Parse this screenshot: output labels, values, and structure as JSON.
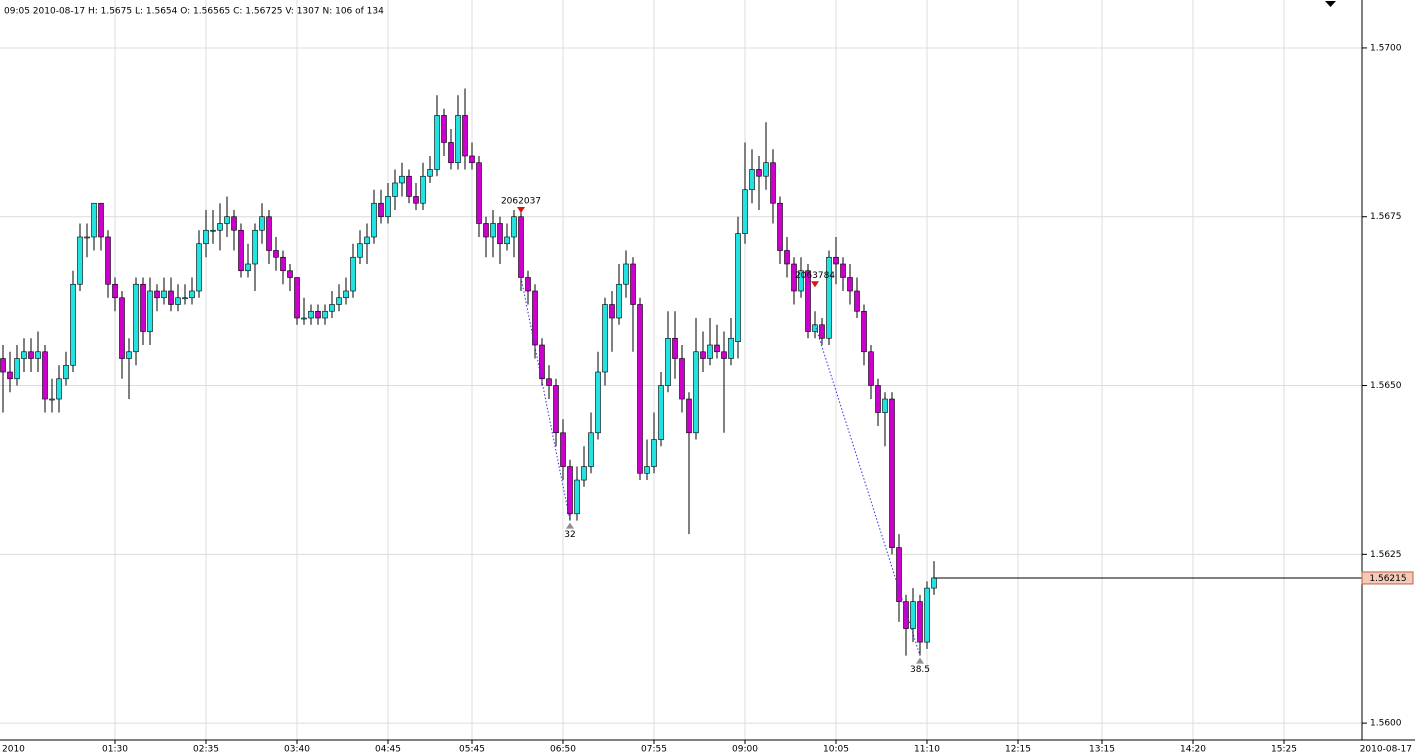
{
  "chart_data": {
    "type": "candlestick",
    "info": "09:05 2010-08-17 H: 1.5675 L: 1.5654 O: 1.56565 C: 1.56725 V: 1307 N: 106 of 134",
    "up_color": "#22e2e2",
    "down_color": "#cc00cc",
    "grid": true,
    "ylim": [
      1.55975,
      1.57071
    ],
    "yticks": [
      {
        "value": 1.56,
        "label": "1.5600"
      },
      {
        "value": 1.5625,
        "label": "1.5625"
      },
      {
        "value": 1.565,
        "label": "1.5650"
      },
      {
        "value": 1.5675,
        "label": "1.5675"
      },
      {
        "value": 1.57,
        "label": "1.5700"
      }
    ],
    "x_start_label": "2010",
    "x_end_label": "2010-08-17",
    "xticks": [
      {
        "value": 16,
        "label": "01:30"
      },
      {
        "value": 29,
        "label": "02:35"
      },
      {
        "value": 42,
        "label": "03:40"
      },
      {
        "value": 55,
        "label": "04:45"
      },
      {
        "value": 67,
        "label": "05:45"
      },
      {
        "value": 80,
        "label": "06:50"
      },
      {
        "value": 93,
        "label": "07:55"
      },
      {
        "value": 106,
        "label": "09:00"
      },
      {
        "value": 119,
        "label": "10:05"
      },
      {
        "value": 132,
        "label": "11:10"
      },
      {
        "value": 145,
        "label": "12:15"
      },
      {
        "value": 157,
        "label": "13:15"
      },
      {
        "value": 170,
        "label": "14:20"
      },
      {
        "value": 183,
        "label": "15:25"
      }
    ],
    "top_markers": [
      {
        "label": "2062037",
        "bar": 74,
        "value": 1.5676
      },
      {
        "label": "2063784",
        "bar": 116,
        "value": 1.5665
      }
    ],
    "bottom_markers": [
      {
        "label": "32",
        "bar": 81,
        "value": 1.563
      },
      {
        "label": "38.5",
        "bar": 131,
        "value": 1.561
      }
    ],
    "candles": [
      [
        1.5654,
        1.5656,
        1.5646,
        1.5652
      ],
      [
        1.5652,
        1.5655,
        1.5649,
        1.5651
      ],
      [
        1.5651,
        1.5656,
        1.565,
        1.5654
      ],
      [
        1.5654,
        1.5657,
        1.5652,
        1.5655
      ],
      [
        1.5655,
        1.5657,
        1.5652,
        1.5654
      ],
      [
        1.5654,
        1.5658,
        1.5652,
        1.5655
      ],
      [
        1.5655,
        1.5656,
        1.5646,
        1.5648
      ],
      [
        1.5648,
        1.5651,
        1.5646,
        1.5648
      ],
      [
        1.5648,
        1.5653,
        1.5646,
        1.5651
      ],
      [
        1.5651,
        1.5655,
        1.565,
        1.5653
      ],
      [
        1.5653,
        1.5667,
        1.5652,
        1.5665
      ],
      [
        1.5665,
        1.5674,
        1.5664,
        1.5672
      ],
      [
        1.5672,
        1.5674,
        1.5669,
        1.5672
      ],
      [
        1.5672,
        1.5677,
        1.567,
        1.5677
      ],
      [
        1.5677,
        1.5677,
        1.567,
        1.5672
      ],
      [
        1.5672,
        1.5673,
        1.5663,
        1.5665
      ],
      [
        1.5665,
        1.5666,
        1.5661,
        1.5663
      ],
      [
        1.5663,
        1.5664,
        1.5651,
        1.5654
      ],
      [
        1.5654,
        1.5657,
        1.5648,
        1.5655
      ],
      [
        1.5655,
        1.5666,
        1.5653,
        1.5665
      ],
      [
        1.5665,
        1.5666,
        1.5656,
        1.5658
      ],
      [
        1.5658,
        1.5666,
        1.5656,
        1.5664
      ],
      [
        1.5664,
        1.5665,
        1.5661,
        1.5663
      ],
      [
        1.5663,
        1.5666,
        1.5662,
        1.5664
      ],
      [
        1.5664,
        1.5666,
        1.5661,
        1.5662
      ],
      [
        1.5662,
        1.5665,
        1.5661,
        1.5663
      ],
      [
        1.5663,
        1.5665,
        1.5662,
        1.5663
      ],
      [
        1.5663,
        1.5666,
        1.5662,
        1.5664
      ],
      [
        1.5664,
        1.5673,
        1.5663,
        1.5671
      ],
      [
        1.5671,
        1.5676,
        1.5669,
        1.5673
      ],
      [
        1.5673,
        1.5676,
        1.5671,
        1.5673
      ],
      [
        1.5673,
        1.5677,
        1.567,
        1.5674
      ],
      [
        1.5674,
        1.5678,
        1.5672,
        1.5675
      ],
      [
        1.5675,
        1.5676,
        1.567,
        1.5673
      ],
      [
        1.5673,
        1.5674,
        1.5666,
        1.5667
      ],
      [
        1.5667,
        1.5671,
        1.5666,
        1.5668
      ],
      [
        1.5668,
        1.5674,
        1.5664,
        1.5673
      ],
      [
        1.5673,
        1.5677,
        1.5671,
        1.5675
      ],
      [
        1.5675,
        1.5676,
        1.5668,
        1.567
      ],
      [
        1.567,
        1.5672,
        1.5667,
        1.5669
      ],
      [
        1.5669,
        1.567,
        1.5665,
        1.5667
      ],
      [
        1.5667,
        1.5668,
        1.5664,
        1.5666
      ],
      [
        1.5666,
        1.5666,
        1.5659,
        1.566
      ],
      [
        1.566,
        1.5663,
        1.5659,
        1.566
      ],
      [
        1.566,
        1.5662,
        1.5659,
        1.5661
      ],
      [
        1.5661,
        1.5662,
        1.5659,
        1.566
      ],
      [
        1.566,
        1.5662,
        1.5659,
        1.5661
      ],
      [
        1.5661,
        1.5664,
        1.566,
        1.5662
      ],
      [
        1.5662,
        1.5665,
        1.5661,
        1.5663
      ],
      [
        1.5663,
        1.5666,
        1.5662,
        1.5664
      ],
      [
        1.5664,
        1.5671,
        1.5663,
        1.5669
      ],
      [
        1.5669,
        1.5673,
        1.5668,
        1.5671
      ],
      [
        1.5671,
        1.5674,
        1.5668,
        1.5672
      ],
      [
        1.5672,
        1.5679,
        1.5671,
        1.5677
      ],
      [
        1.5677,
        1.5679,
        1.5674,
        1.5675
      ],
      [
        1.5675,
        1.568,
        1.5674,
        1.5678
      ],
      [
        1.5678,
        1.5682,
        1.5676,
        1.568
      ],
      [
        1.568,
        1.5683,
        1.5678,
        1.5681
      ],
      [
        1.5681,
        1.5682,
        1.5677,
        1.5678
      ],
      [
        1.5678,
        1.568,
        1.5676,
        1.5677
      ],
      [
        1.5677,
        1.5683,
        1.5676,
        1.5681
      ],
      [
        1.5681,
        1.5684,
        1.568,
        1.5682
      ],
      [
        1.5682,
        1.5693,
        1.5681,
        1.569
      ],
      [
        1.569,
        1.5691,
        1.5684,
        1.5686
      ],
      [
        1.5686,
        1.5688,
        1.5682,
        1.5683
      ],
      [
        1.5683,
        1.5693,
        1.5682,
        1.569
      ],
      [
        1.569,
        1.5694,
        1.5682,
        1.5684
      ],
      [
        1.5684,
        1.5686,
        1.5682,
        1.5683
      ],
      [
        1.5683,
        1.5684,
        1.5672,
        1.5674
      ],
      [
        1.5674,
        1.5675,
        1.5669,
        1.5672
      ],
      [
        1.5672,
        1.5676,
        1.5669,
        1.5674
      ],
      [
        1.5674,
        1.5675,
        1.5668,
        1.5671
      ],
      [
        1.5671,
        1.5674,
        1.567,
        1.5672
      ],
      [
        1.5672,
        1.5676,
        1.5669,
        1.5675
      ],
      [
        1.5675,
        1.5676,
        1.5664,
        1.5666
      ],
      [
        1.5666,
        1.5667,
        1.5662,
        1.5664
      ],
      [
        1.5664,
        1.5665,
        1.5654,
        1.5656
      ],
      [
        1.5656,
        1.5657,
        1.565,
        1.5651
      ],
      [
        1.5651,
        1.5653,
        1.5648,
        1.565
      ],
      [
        1.565,
        1.5651,
        1.5641,
        1.5643
      ],
      [
        1.5643,
        1.5645,
        1.5636,
        1.5638
      ],
      [
        1.5638,
        1.5639,
        1.563,
        1.5631
      ],
      [
        1.5631,
        1.5638,
        1.563,
        1.5636
      ],
      [
        1.5636,
        1.5641,
        1.5635,
        1.5638
      ],
      [
        1.5638,
        1.5646,
        1.5637,
        1.5643
      ],
      [
        1.5643,
        1.5655,
        1.5642,
        1.5652
      ],
      [
        1.5652,
        1.5663,
        1.565,
        1.5662
      ],
      [
        1.5662,
        1.5664,
        1.5655,
        1.566
      ],
      [
        1.566,
        1.5668,
        1.5659,
        1.5665
      ],
      [
        1.5665,
        1.567,
        1.5663,
        1.5668
      ],
      [
        1.5668,
        1.5669,
        1.5655,
        1.5662
      ],
      [
        1.5662,
        1.5663,
        1.5636,
        1.5637
      ],
      [
        1.5637,
        1.5642,
        1.5636,
        1.5638
      ],
      [
        1.5638,
        1.5646,
        1.5637,
        1.5642
      ],
      [
        1.5642,
        1.5652,
        1.5641,
        1.565
      ],
      [
        1.565,
        1.5661,
        1.5649,
        1.5657
      ],
      [
        1.5657,
        1.5661,
        1.5651,
        1.5654
      ],
      [
        1.5654,
        1.5656,
        1.5646,
        1.5648
      ],
      [
        1.5648,
        1.5649,
        1.5628,
        1.5643
      ],
      [
        1.5643,
        1.566,
        1.5642,
        1.5655
      ],
      [
        1.5655,
        1.5658,
        1.5652,
        1.5654
      ],
      [
        1.5654,
        1.566,
        1.5653,
        1.5656
      ],
      [
        1.5656,
        1.5659,
        1.5654,
        1.5655
      ],
      [
        1.5655,
        1.5658,
        1.5643,
        1.5654
      ],
      [
        1.5654,
        1.566,
        1.5653,
        1.5657
      ],
      [
        1.56565,
        1.5675,
        1.5654,
        1.56725
      ],
      [
        1.56725,
        1.5686,
        1.5671,
        1.5679
      ],
      [
        1.5679,
        1.5685,
        1.5677,
        1.5682
      ],
      [
        1.5682,
        1.5684,
        1.5676,
        1.5681
      ],
      [
        1.5681,
        1.5689,
        1.5679,
        1.5683
      ],
      [
        1.5683,
        1.5685,
        1.5674,
        1.5677
      ],
      [
        1.5677,
        1.5678,
        1.5668,
        1.567
      ],
      [
        1.567,
        1.5672,
        1.5666,
        1.5668
      ],
      [
        1.5668,
        1.5669,
        1.5662,
        1.5664
      ],
      [
        1.5664,
        1.5669,
        1.5663,
        1.5667
      ],
      [
        1.5667,
        1.5668,
        1.5657,
        1.5658
      ],
      [
        1.5658,
        1.5661,
        1.5657,
        1.5659
      ],
      [
        1.5659,
        1.566,
        1.5656,
        1.5657
      ],
      [
        1.5657,
        1.567,
        1.5656,
        1.5669
      ],
      [
        1.5669,
        1.5672,
        1.5665,
        1.5668
      ],
      [
        1.5668,
        1.5669,
        1.5664,
        1.5666
      ],
      [
        1.5666,
        1.5668,
        1.5662,
        1.5664
      ],
      [
        1.5664,
        1.5666,
        1.566,
        1.5661
      ],
      [
        1.5661,
        1.5662,
        1.5653,
        1.5655
      ],
      [
        1.5655,
        1.5656,
        1.5648,
        1.565
      ],
      [
        1.565,
        1.5651,
        1.5644,
        1.5646
      ],
      [
        1.5646,
        1.5649,
        1.5641,
        1.5648
      ],
      [
        1.5648,
        1.5649,
        1.5625,
        1.5626
      ],
      [
        1.5626,
        1.5628,
        1.5615,
        1.5618
      ],
      [
        1.5618,
        1.5619,
        1.561,
        1.5614
      ],
      [
        1.5614,
        1.562,
        1.5612,
        1.5618
      ],
      [
        1.5618,
        1.5619,
        1.561,
        1.5612
      ],
      [
        1.5612,
        1.5621,
        1.5611,
        1.562
      ],
      [
        1.562,
        1.5624,
        1.5619,
        1.56215
      ]
    ]
  }
}
